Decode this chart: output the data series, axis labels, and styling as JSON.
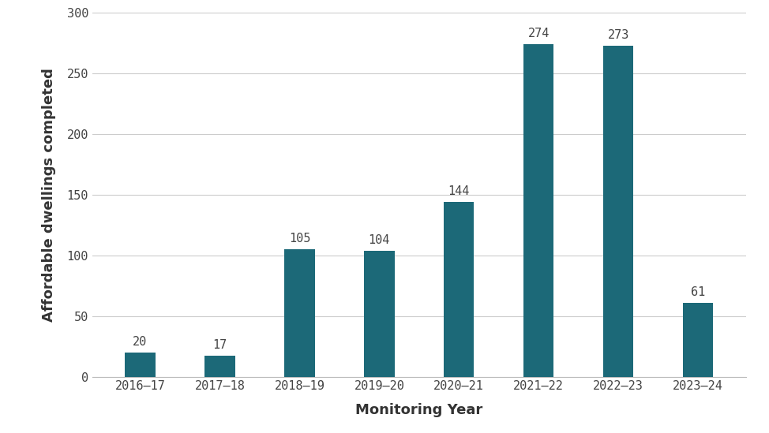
{
  "categories": [
    "2016–17",
    "2017–18",
    "2018–19",
    "2019–20",
    "2020–21",
    "2021–22",
    "2022–23",
    "2023–24"
  ],
  "values": [
    20,
    17,
    105,
    104,
    144,
    274,
    273,
    61
  ],
  "bar_color": "#1c6978",
  "xlabel": "Monitoring Year",
  "ylabel": "Affordable dwellings completed",
  "ylim": [
    0,
    300
  ],
  "yticks": [
    0,
    50,
    100,
    150,
    200,
    250,
    300
  ],
  "background_color": "#ffffff",
  "grid_color": "#cccccc",
  "label_fontsize": 13,
  "tick_fontsize": 11,
  "bar_label_fontsize": 11,
  "bar_width": 0.38
}
